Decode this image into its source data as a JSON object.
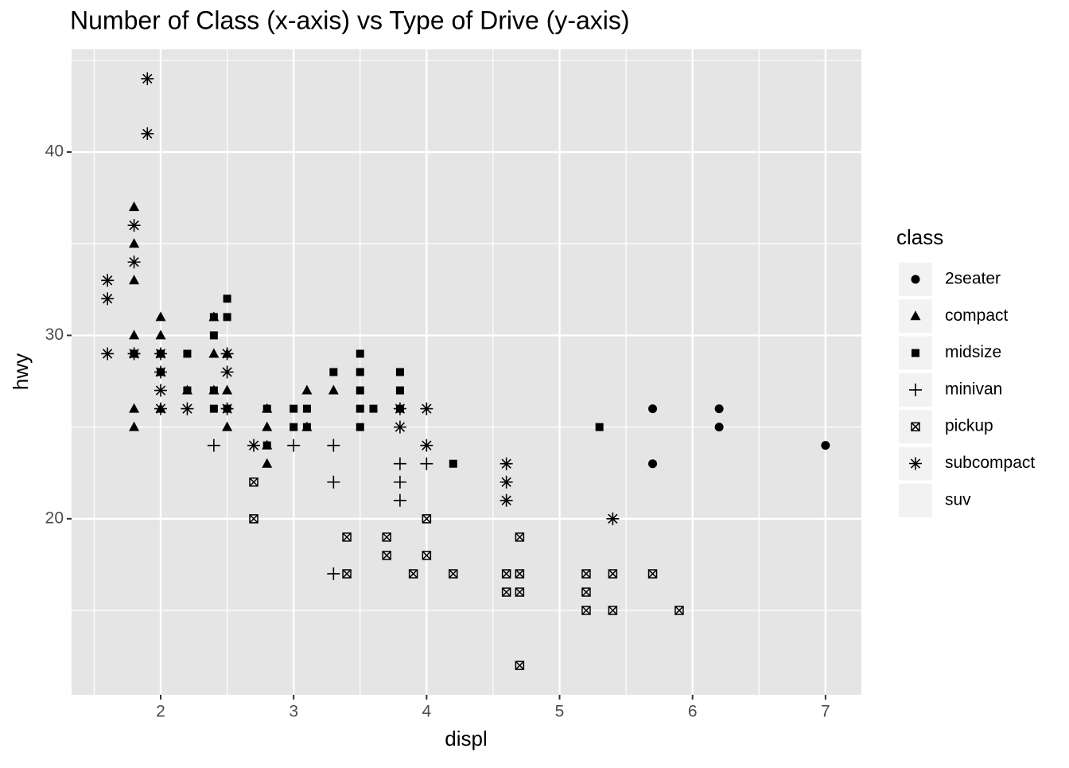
{
  "chart_data": {
    "type": "scatter",
    "title": "Number of Class (x-axis) vs Type of Drive (y-axis)",
    "x_label": "displ",
    "y_label": "hwy",
    "legend_title": "class",
    "xlim": [
      1.33,
      7.27
    ],
    "ylim": [
      10.4,
      45.6
    ],
    "xticks": [
      2,
      3,
      4,
      5,
      6,
      7
    ],
    "yticks": [
      20,
      30,
      40
    ],
    "grid": true,
    "legend": "right",
    "series": [
      {
        "name": "2seater",
        "shape": "circle",
        "color": "#000000",
        "x": [
          5.7,
          5.7,
          6.2,
          6.2,
          7.0
        ],
        "y": [
          26,
          23,
          26,
          25,
          24
        ]
      },
      {
        "name": "compact",
        "shape": "triangle",
        "color": "#000000",
        "x": [
          1.8,
          1.8,
          1.8,
          1.8,
          1.8,
          1.8,
          1.8,
          2.0,
          2.0,
          2.0,
          2.0,
          2.0,
          2.2,
          2.4,
          2.4,
          2.4,
          2.5,
          2.5,
          2.5,
          2.8,
          2.8,
          2.8,
          2.8,
          3.1,
          3.1,
          3.3
        ],
        "y": [
          37,
          35,
          33,
          30,
          29,
          26,
          25,
          31,
          30,
          29,
          28,
          26,
          27,
          31,
          29,
          27,
          29,
          27,
          25,
          26,
          25,
          24,
          23,
          27,
          25,
          27
        ]
      },
      {
        "name": "midsize",
        "shape": "square",
        "color": "#000000",
        "x": [
          1.8,
          2.0,
          2.0,
          2.2,
          2.2,
          2.4,
          2.4,
          2.4,
          2.4,
          2.5,
          2.5,
          2.5,
          2.8,
          2.8,
          3.0,
          3.0,
          3.1,
          3.1,
          3.3,
          3.5,
          3.5,
          3.5,
          3.5,
          3.5,
          3.6,
          3.8,
          3.8,
          3.8,
          4.2,
          5.3
        ],
        "y": [
          29,
          29,
          28,
          29,
          27,
          31,
          30,
          27,
          26,
          32,
          31,
          26,
          26,
          24,
          26,
          25,
          26,
          25,
          28,
          29,
          28,
          27,
          26,
          25,
          26,
          28,
          27,
          26,
          23,
          25
        ]
      },
      {
        "name": "minivan",
        "shape": "plus",
        "color": "#000000",
        "x": [
          2.4,
          3.0,
          3.3,
          3.3,
          3.3,
          3.8,
          3.8,
          3.8,
          4.0
        ],
        "y": [
          24,
          24,
          24,
          22,
          17,
          23,
          22,
          21,
          23
        ]
      },
      {
        "name": "pickup",
        "shape": "square-cross",
        "color": "#000000",
        "x": [
          2.7,
          2.7,
          3.4,
          3.4,
          3.7,
          3.7,
          3.9,
          4.0,
          4.0,
          4.2,
          4.6,
          4.6,
          4.7,
          4.7,
          4.7,
          4.7,
          5.2,
          5.2,
          5.2,
          5.4,
          5.4,
          5.7,
          5.9
        ],
        "y": [
          22,
          20,
          19,
          17,
          19,
          18,
          17,
          20,
          18,
          17,
          17,
          16,
          19,
          17,
          16,
          12,
          17,
          16,
          15,
          17,
          15,
          17,
          15
        ]
      },
      {
        "name": "subcompact",
        "shape": "asterisk",
        "color": "#000000",
        "x": [
          1.6,
          1.6,
          1.6,
          1.8,
          1.8,
          1.8,
          1.9,
          1.9,
          2.0,
          2.0,
          2.0,
          2.0,
          2.2,
          2.5,
          2.5,
          2.5,
          2.7,
          3.8,
          3.8,
          4.0,
          4.0,
          4.6,
          4.6,
          4.6,
          5.4
        ],
        "y": [
          33,
          32,
          29,
          36,
          34,
          29,
          44,
          41,
          29,
          28,
          27,
          26,
          26,
          29,
          28,
          26,
          24,
          26,
          25,
          26,
          24,
          23,
          22,
          21,
          20
        ]
      },
      {
        "name": "suv",
        "x": [],
        "y": []
      }
    ]
  }
}
